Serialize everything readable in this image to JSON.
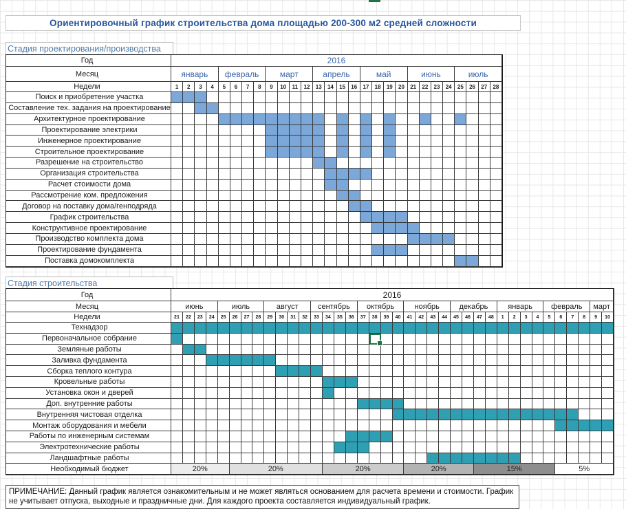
{
  "title": "Ориентировочный график строительства дома площадью 200-300 м2 средней сложности",
  "colors": {
    "design_fill": "#7ba7d9",
    "build_fill": "#2f9fb4",
    "excel_green": "#217346",
    "title_blue": "#24549c",
    "section_blue": "#4f7ca8",
    "month_blue": "#3a67a8",
    "header_beige": "#eeeee1"
  },
  "section1": {
    "heading": "Стадия проектирования/производства",
    "year_label": "Год",
    "year": "2016",
    "month_label": "Месяц",
    "weeks_label": "Недели",
    "months": [
      {
        "label": "январь",
        "span": 4
      },
      {
        "label": "февраль",
        "span": 4
      },
      {
        "label": "март",
        "span": 4
      },
      {
        "label": "апрель",
        "span": 4
      },
      {
        "label": "май",
        "span": 4
      },
      {
        "label": "июнь",
        "span": 4
      },
      {
        "label": "июль",
        "span": 4
      }
    ],
    "weeks": [
      "1",
      "2",
      "3",
      "4",
      "5",
      "6",
      "7",
      "8",
      "9",
      "10",
      "11",
      "12",
      "13",
      "14",
      "15",
      "16",
      "17",
      "18",
      "19",
      "20",
      "21",
      "22",
      "23",
      "24",
      "25",
      "26",
      "27",
      "28"
    ],
    "rows": [
      {
        "label": "Поиск и приобретение участка",
        "bars": [
          [
            1,
            3
          ]
        ]
      },
      {
        "label": "Составление тех. задания на проектирование",
        "bars": [
          [
            3,
            4
          ]
        ]
      },
      {
        "label": "Архитектурное проектирование",
        "bars": [
          [
            5,
            13
          ],
          [
            15,
            15
          ],
          [
            17,
            17
          ],
          [
            19,
            19
          ],
          [
            22,
            22
          ],
          [
            25,
            25
          ]
        ]
      },
      {
        "label": "Проектирование электрики",
        "bars": [
          [
            9,
            13
          ],
          [
            15,
            15
          ],
          [
            17,
            17
          ],
          [
            19,
            19
          ]
        ]
      },
      {
        "label": "Инженерное проектирование",
        "bars": [
          [
            9,
            13
          ],
          [
            15,
            15
          ],
          [
            17,
            17
          ],
          [
            19,
            19
          ]
        ]
      },
      {
        "label": "Строительное проектирование",
        "bars": [
          [
            9,
            13
          ],
          [
            15,
            15
          ],
          [
            17,
            17
          ],
          [
            19,
            19
          ]
        ]
      },
      {
        "label": "Разрешение на строительство",
        "bars": [
          [
            13,
            14
          ]
        ]
      },
      {
        "label": "Организация строительства",
        "bars": [
          [
            14,
            17
          ]
        ]
      },
      {
        "label": "Расчет стоимости дома",
        "bars": [
          [
            14,
            15
          ]
        ]
      },
      {
        "label": "Рассмотрение ком. предложения",
        "bars": [
          [
            15,
            16
          ]
        ]
      },
      {
        "label": "Договор на поставку дома/генподряда",
        "bars": [
          [
            16,
            17
          ]
        ]
      },
      {
        "label": "График строительства",
        "bars": [
          [
            17,
            20
          ]
        ]
      },
      {
        "label": "Конструктивное проектирование",
        "bars": [
          [
            18,
            21
          ]
        ]
      },
      {
        "label": "Производство комплекта дома",
        "bars": [
          [
            21,
            24
          ]
        ]
      },
      {
        "label": "Проектирование фундамента",
        "bars": [
          [
            18,
            20
          ]
        ]
      },
      {
        "label": "Поставка домокомплекта",
        "bars": [
          [
            25,
            26
          ]
        ]
      }
    ]
  },
  "section2": {
    "heading": "Стадия строительства",
    "year_label": "Год",
    "year": "2016",
    "month_label": "Месяц",
    "weeks_label": "Недели",
    "months": [
      {
        "label": "июнь",
        "span": 4
      },
      {
        "label": "июль",
        "span": 4
      },
      {
        "label": "август",
        "span": 4
      },
      {
        "label": "сентябрь",
        "span": 4
      },
      {
        "label": "октябрь",
        "span": 4
      },
      {
        "label": "ноябрь",
        "span": 4
      },
      {
        "label": "декабрь",
        "span": 4
      },
      {
        "label": "январь",
        "span": 4
      },
      {
        "label": "февраль",
        "span": 4
      },
      {
        "label": "март",
        "span": 2
      }
    ],
    "weeks": [
      "21",
      "22",
      "23",
      "24",
      "25",
      "26",
      "27",
      "28",
      "29",
      "30",
      "31",
      "32",
      "33",
      "34",
      "35",
      "36",
      "37",
      "38",
      "39",
      "40",
      "41",
      "42",
      "43",
      "44",
      "45",
      "46",
      "47",
      "48",
      "1",
      "2",
      "3",
      "4",
      "5",
      "6",
      "7",
      "8",
      "9",
      "10"
    ],
    "rows": [
      {
        "label": "Технадзор",
        "bars": [
          [
            1,
            38
          ]
        ]
      },
      {
        "label": "Первоначальное собрание",
        "bars": [
          [
            1,
            1
          ]
        ]
      },
      {
        "label": "Земляные работы",
        "bars": [
          [
            2,
            3
          ]
        ]
      },
      {
        "label": "Заливка фундамента",
        "bars": [
          [
            4,
            9
          ]
        ]
      },
      {
        "label": "Сборка теплого контура",
        "bars": [
          [
            10,
            13
          ]
        ]
      },
      {
        "label": "Кровельные работы",
        "bars": [
          [
            14,
            16
          ]
        ]
      },
      {
        "label": "Установка окон и дверей",
        "bars": [
          [
            14,
            14
          ]
        ]
      },
      {
        "label": "Доп. внутренние работы",
        "bars": [
          [
            17,
            20
          ]
        ]
      },
      {
        "label": "Внутренняя чистовая отделка",
        "bars": [
          [
            20,
            35
          ]
        ]
      },
      {
        "label": "Монтаж оборудования и мебели",
        "bars": [
          [
            34,
            38
          ]
        ]
      },
      {
        "label": "Работы по инженерным системам",
        "bars": [
          [
            16,
            19
          ]
        ]
      },
      {
        "label": "Электротехнические работы",
        "bars": [
          [
            15,
            17
          ]
        ]
      },
      {
        "label": "Ландшафтные работы",
        "bars": [
          [
            23,
            30
          ]
        ]
      }
    ],
    "budget": {
      "label": "Необходимый бюджет",
      "segments": [
        {
          "label": "20%",
          "from": 1,
          "to": 5,
          "bg": "#ededed"
        },
        {
          "label": "20%",
          "from": 6,
          "to": 13,
          "bg": "#e0e0e0"
        },
        {
          "label": "20%",
          "from": 14,
          "to": 20,
          "bg": "#cccccc"
        },
        {
          "label": "20%",
          "from": 21,
          "to": 26,
          "bg": "#b3b3b3"
        },
        {
          "label": "15%",
          "from": 27,
          "to": 33,
          "bg": "#8e8e8e"
        },
        {
          "label": "5%",
          "from": 34,
          "to": 38,
          "bg": "#ffffff"
        }
      ]
    }
  },
  "selection": {
    "row_label": "Первоначальное собрание",
    "week_label": "38"
  },
  "note": "ПРИМЕЧАНИЕ: Данный график является ознакомительным и не может являться основанием для расчета времени и стоимости. График не учитывает отпуска, выходные и праздничные дни. Для каждого проекта составляется индивидуальный график."
}
